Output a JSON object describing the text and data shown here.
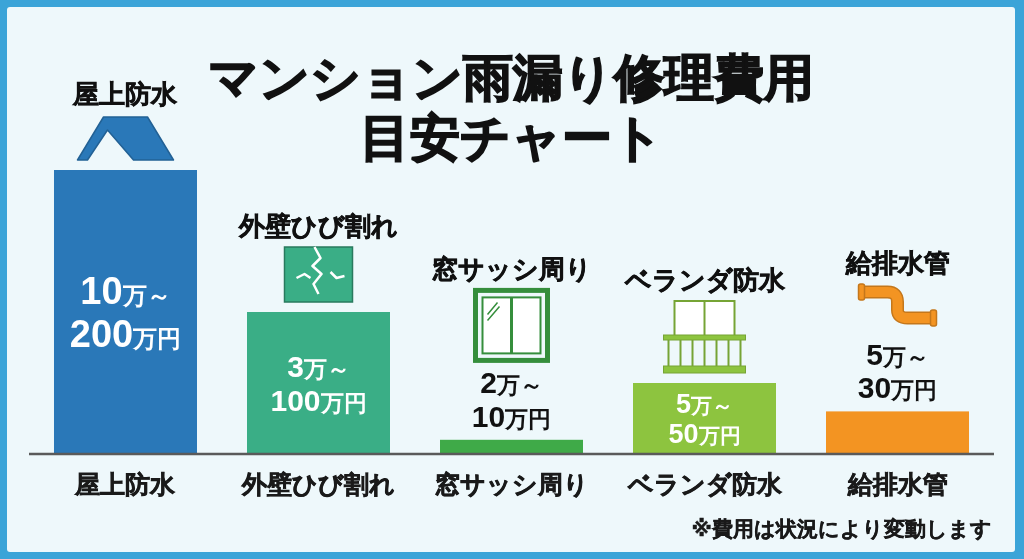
{
  "chart_data": {
    "type": "bar",
    "title": "マンション雨漏り修理費用目安チャート",
    "categories": [
      "屋上防水",
      "外壁ひび割れ",
      "窓サッシ周り",
      "ベランダ防水",
      "給排水管"
    ],
    "values": [
      200,
      100,
      10,
      50,
      30
    ],
    "colors": [
      "#2a78b8",
      "#3aae86",
      "#3faa48",
      "#8dc43f",
      "#f39422"
    ],
    "value_labels": [
      "10万～\n200万円",
      "3万～\n100万円",
      "2万～\n10万円",
      "5万～\n50万円",
      "5万～\n30万円"
    ],
    "annotations": [
      "屋上防水",
      "外壁ひび割れ",
      "窓サッシ周り",
      "ベランダ防水",
      "給排水管",
      "※費用は状況により変動します"
    ]
  }
}
